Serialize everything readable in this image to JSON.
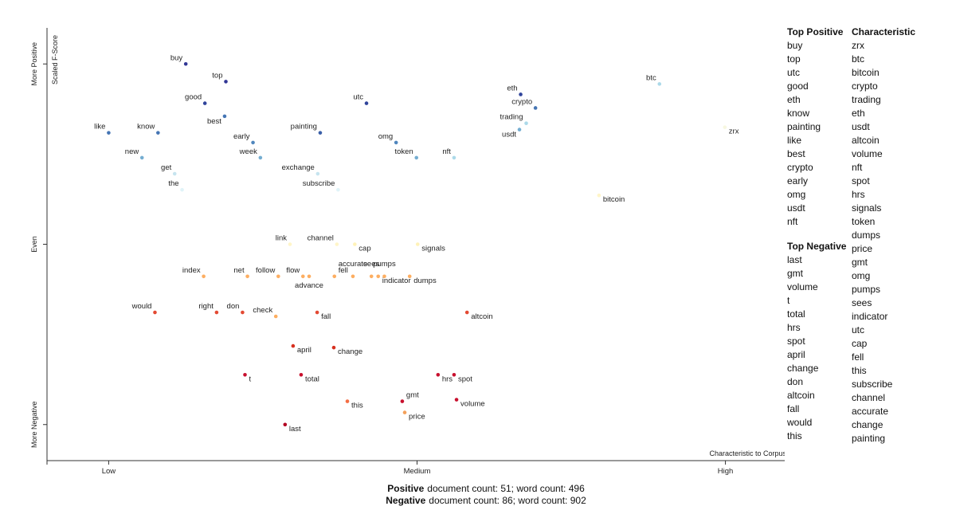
{
  "chart_data": {
    "type": "scatter",
    "x_label": "Characteristic to Corpus",
    "y_label": "Scaled F-Score",
    "xlim": [
      -0.1,
      1.1
    ],
    "ylim": [
      -1.2,
      1.2
    ],
    "xticks": [
      {
        "value": 0,
        "label": "Low"
      },
      {
        "value": 0.5,
        "label": "Medium"
      },
      {
        "value": 1,
        "label": "High"
      }
    ],
    "yticks": [
      {
        "value": 1,
        "label": "More Positive"
      },
      {
        "value": 0,
        "label": "Even"
      },
      {
        "value": -1,
        "label": "More Negative"
      }
    ],
    "labels": [
      "buy",
      "top",
      "good",
      "best",
      "like",
      "know",
      "early",
      "painting",
      "utc",
      "omg",
      "token",
      "nft",
      "eth",
      "crypto",
      "trading",
      "usdt",
      "btc",
      "zrx",
      "new",
      "get",
      "the",
      "week",
      "exchange",
      "subscribe",
      "bitcoin",
      "link",
      "channel",
      "cap",
      "signals",
      "index",
      "net",
      "follow",
      "flow",
      "advance",
      "fell",
      "accurate",
      "sees",
      "indicator",
      "pumps",
      "dumps",
      "would",
      "right",
      "don",
      "check",
      "fall",
      "altcoin",
      "april",
      "change",
      "t",
      "total",
      "hrs",
      "spot",
      "this",
      "gmt",
      "volume",
      "price",
      "last"
    ],
    "x": [
      0.125,
      0.19,
      0.156,
      0.188,
      0,
      0.08,
      0.234,
      0.343,
      0.418,
      0.466,
      0.499,
      0.56,
      0.668,
      0.692,
      0.677,
      0.666,
      0.893,
      0.999,
      0.054,
      0.107,
      0.119,
      0.246,
      0.339,
      0.372,
      0.795,
      0.294,
      0.37,
      0.399,
      0.501,
      0.154,
      0.225,
      0.275,
      0.315,
      0.325,
      0.366,
      0.396,
      0.426,
      0.437,
      0.447,
      0.488,
      0.075,
      0.175,
      0.217,
      0.271,
      0.338,
      0.581,
      0.299,
      0.365,
      0.221,
      0.312,
      0.534,
      0.56,
      0.387,
      0.476,
      0.564,
      0.48,
      0.286
    ],
    "y": [
      1.0,
      0.902,
      0.782,
      0.71,
      0.618,
      0.618,
      0.564,
      0.618,
      0.782,
      0.564,
      0.48,
      0.48,
      0.831,
      0.756,
      0.671,
      0.636,
      0.889,
      0.649,
      0.48,
      0.391,
      0.302,
      0.48,
      0.391,
      0.302,
      0.271,
      0,
      0,
      0,
      0,
      -0.178,
      -0.178,
      -0.178,
      -0.178,
      -0.178,
      -0.178,
      -0.178,
      -0.178,
      -0.178,
      -0.178,
      -0.178,
      -0.378,
      -0.378,
      -0.378,
      -0.4,
      -0.378,
      -0.378,
      -0.564,
      -0.573,
      -0.724,
      -0.724,
      -0.724,
      -0.724,
      -0.871,
      -0.871,
      -0.862,
      -0.933,
      -1.0
    ],
    "colors": [
      "#313695",
      "#313695",
      "#30449b",
      "#4575b4",
      "#4575b4",
      "#4575b4",
      "#4f86bd",
      "#3a5fa8",
      "#30449b",
      "#4f86bd",
      "#74add1",
      "#abd9e9",
      "#30449b",
      "#4575b4",
      "#abd9e9",
      "#74add1",
      "#abd9e9",
      "#f7f7e0",
      "#74add1",
      "#c6e4ef",
      "#e0f3f8",
      "#74add1",
      "#c6e4ef",
      "#e0f3f8",
      "#fff5c8",
      "#fff5c8",
      "#fff5c8",
      "#fff2b8",
      "#fff2b8",
      "#fdae61",
      "#fdae61",
      "#fdae61",
      "#fdae61",
      "#fdae61",
      "#fdae61",
      "#fdae61",
      "#fdae61",
      "#fdae61",
      "#fdae61",
      "#fdae61",
      "#e34a33",
      "#e34a33",
      "#e34a33",
      "#fdae61",
      "#e34a33",
      "#e34a33",
      "#d7301f",
      "#d7301f",
      "#c8102e",
      "#c8102e",
      "#c8102e",
      "#c8102e",
      "#f46d43",
      "#c8102e",
      "#c8102e",
      "#f4a05a",
      "#b30021"
    ]
  },
  "top_positive": {
    "title": "Top Positive",
    "terms": [
      "buy",
      "top",
      "utc",
      "good",
      "eth",
      "know",
      "painting",
      "like",
      "best",
      "crypto",
      "early",
      "omg",
      "usdt",
      "nft"
    ]
  },
  "top_negative": {
    "title": "Top Negative",
    "terms": [
      "last",
      "gmt",
      "volume",
      "t",
      "total",
      "hrs",
      "spot",
      "april",
      "change",
      "don",
      "altcoin",
      "fall",
      "would",
      "this"
    ]
  },
  "characteristic": {
    "title": "Characteristic",
    "terms": [
      "zrx",
      "btc",
      "bitcoin",
      "crypto",
      "trading",
      "eth",
      "usdt",
      "altcoin",
      "volume",
      "nft",
      "spot",
      "hrs",
      "signals",
      "token",
      "dumps",
      "price",
      "gmt",
      "omg",
      "pumps",
      "sees",
      "indicator",
      "utc",
      "cap",
      "fell",
      "this",
      "subscribe",
      "channel",
      "accurate",
      "change",
      "painting"
    ]
  },
  "footer": [
    {
      "label": "Positive",
      "text": "document count: 51; word count: 496"
    },
    {
      "label": "Negative",
      "text": "document count: 86; word count: 902"
    }
  ]
}
